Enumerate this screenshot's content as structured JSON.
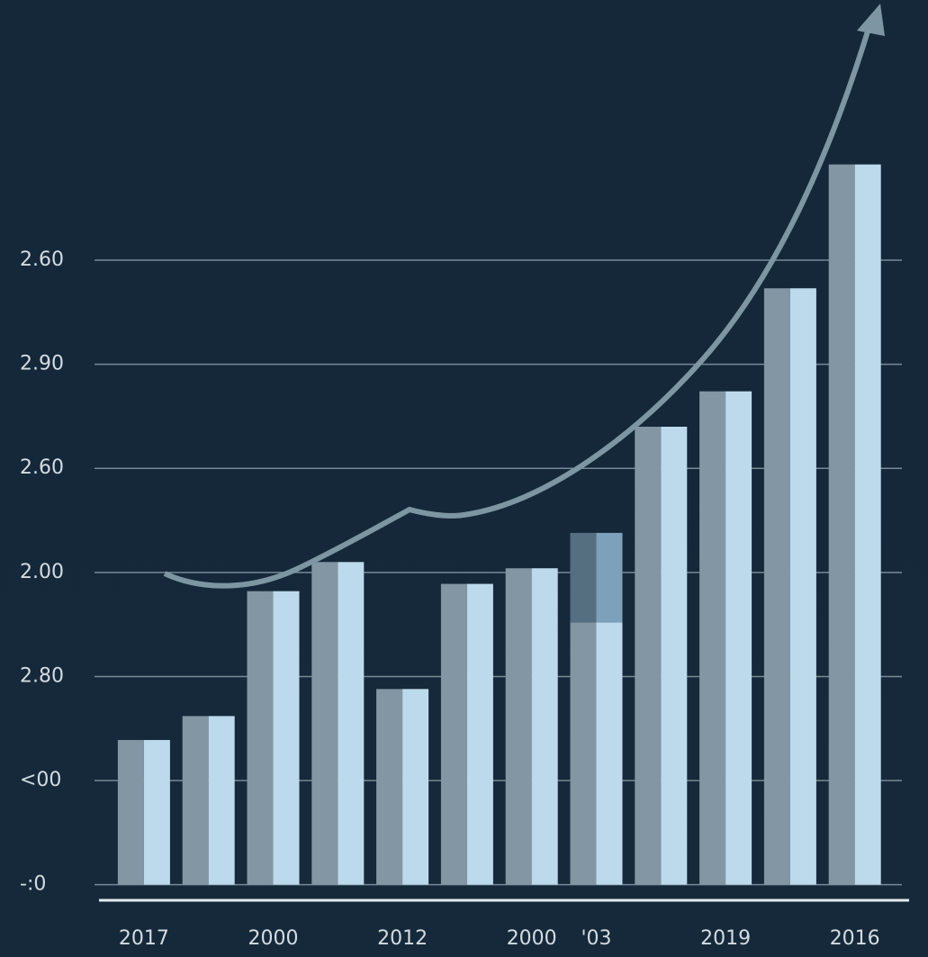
{
  "chart_data": {
    "type": "bar",
    "stacked": true,
    "categories": [
      "2017",
      null,
      "2000",
      null,
      "2012",
      null,
      "2000",
      "'03",
      null,
      "2019",
      null,
      "2016"
    ],
    "series": [
      {
        "color": "#8296a3",
        "values": [
          1.39,
          1.62,
          2.82,
          3.1,
          1.88,
          2.89,
          3.04,
          2.52,
          4.4,
          4.74,
          5.73,
          6.92
        ]
      },
      {
        "color": "#566f80",
        "values": [
          null,
          null,
          null,
          null,
          null,
          null,
          null,
          0.86,
          null,
          null,
          null,
          null
        ]
      }
    ],
    "ylim": [
      -0.15,
      8.5
    ],
    "yticks": [
      {
        "value": 0,
        "label": "-:0"
      },
      {
        "value": 1,
        "label": "<00"
      },
      {
        "value": 2,
        "label": "2.80"
      },
      {
        "value": 3,
        "label": "2.00"
      },
      {
        "value": 4,
        "label": "2.60"
      },
      {
        "value": 5,
        "label": "2.90"
      },
      {
        "value": 6,
        "label": "2.60"
      }
    ],
    "grid": true
  }
}
